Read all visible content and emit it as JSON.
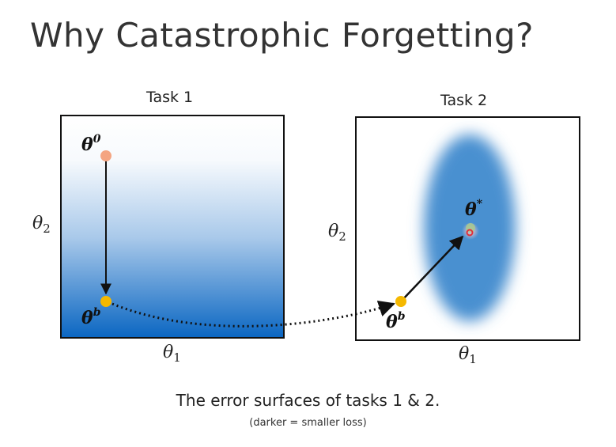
{
  "slide": {
    "title": "Why Catastrophic Forgetting?",
    "task1_label": "Task 1",
    "task2_label": "Task 2",
    "caption": "The error surfaces of tasks 1 & 2.",
    "subcaption": "(darker = smaller loss)"
  },
  "task1": {
    "x_axis": {
      "base": "θ",
      "sub": "1"
    },
    "y_axis": {
      "base": "θ",
      "sub": "2"
    },
    "start_point": {
      "base": "θ",
      "sup": "0"
    },
    "end_point": {
      "base": "θ",
      "sup": "b"
    },
    "colors": {
      "gradient_top": "#ffffff",
      "gradient_bottom": "#0a66c2",
      "start_dot": "#f4a582",
      "end_dot": "#f5b800"
    }
  },
  "task2": {
    "x_axis": {
      "base": "θ",
      "sub": "1"
    },
    "y_axis": {
      "base": "θ",
      "sub": "2"
    },
    "start_point": {
      "base": "θ",
      "sup": "b"
    },
    "target_point": {
      "base": "θ",
      "sup": "*"
    },
    "colors": {
      "blob": "#4a90d0",
      "start_dot": "#f5b800",
      "target_dot": "#e0303a"
    }
  }
}
